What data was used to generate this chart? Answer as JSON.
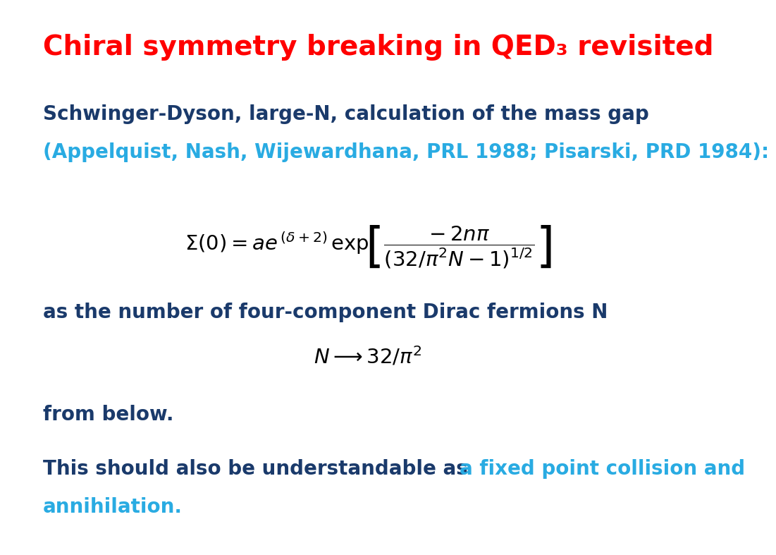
{
  "title": "Chiral symmetry breaking in QED₃ revisited",
  "title_color": "#ff0000",
  "title_fontsize": 28,
  "line1": "Schwinger-Dyson, large-N, calculation of the mass gap",
  "line2": "(Appelquist, Nash, Wijewardhana, PRL 1988; Pisarski, PRD 1984):",
  "text_color_dark": "#1a3a6b",
  "text_color_cyan": "#29abe2",
  "text_fontsize": 20,
  "body_text1": "as the number of four-component Dirac fermions N",
  "body_text2": "from below.",
  "last_line_black": "This should also be understandable as ",
  "last_line_cyan": "a fixed point collision and",
  "last_line_cyan2": "annihilation.",
  "background_color": "#ffffff"
}
